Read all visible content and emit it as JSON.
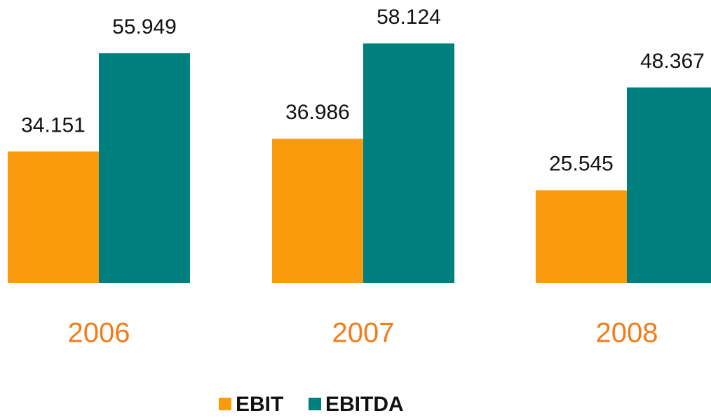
{
  "chart_data": {
    "type": "bar",
    "categories": [
      "2006",
      "2007",
      "2008"
    ],
    "series": [
      {
        "name": "EBIT",
        "color": "#f99b0c",
        "values": [
          34.151,
          36.986,
          25.545
        ]
      },
      {
        "name": "EBITDA",
        "color": "#007f7f",
        "values": [
          55.949,
          58.124,
          48.367
        ]
      }
    ],
    "ylim": [
      5,
      60
    ],
    "legend": "bottom"
  }
}
